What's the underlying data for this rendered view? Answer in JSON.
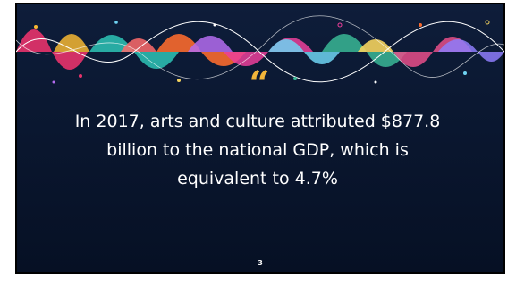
{
  "slide": {
    "quote_mark": "“",
    "text_lines": [
      "In 2017, arts and culture attributed $877.8",
      "billion to the national GDP, which is",
      "equivalent to 4.7%"
    ],
    "page_number": "3"
  }
}
